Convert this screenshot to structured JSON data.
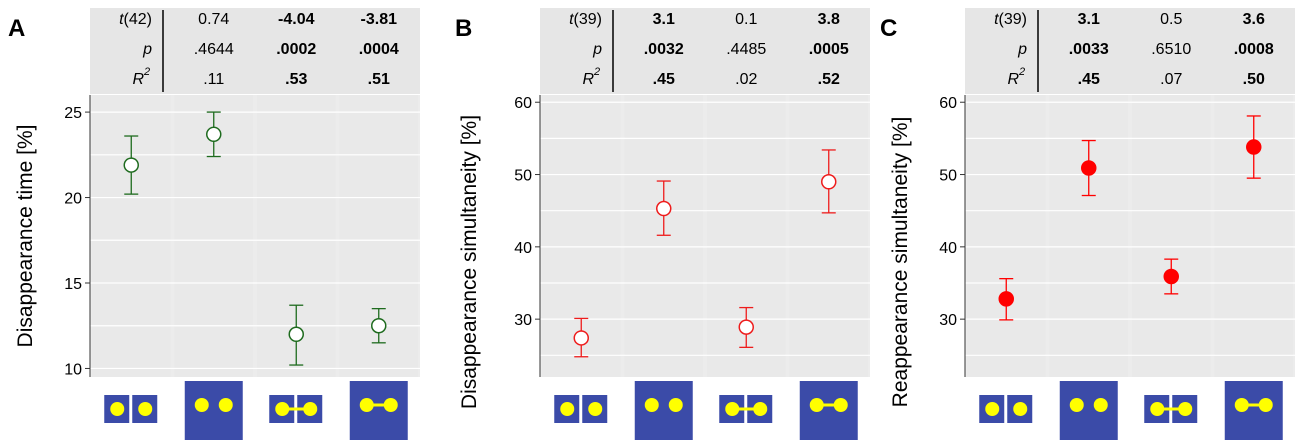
{
  "panels": [
    {
      "letter": "A",
      "stats_labels": {
        "t": "t(42)",
        "p": "p",
        "r2": "R"
      },
      "stats": [
        {
          "t": "0.74",
          "p": ".4644",
          "r2": ".11",
          "bold": false
        },
        {
          "t": "-4.04",
          "p": ".0002",
          "r2": ".53",
          "bold": true
        },
        {
          "t": "-3.81",
          "p": ".0004",
          "r2": ".51",
          "bold": true
        }
      ],
      "chart": {
        "type": "scatter",
        "ylabel": "Disappearance time [%]",
        "ylim": [
          9.5,
          26
        ],
        "yticks": [
          10,
          15,
          20,
          25
        ],
        "yminor": [
          12.5,
          17.5,
          22.5
        ],
        "grid": true,
        "marker": "open",
        "color": "#1e6b1e",
        "categories": [
          "separate-small",
          "separate-large",
          "connected-small",
          "connected-large"
        ],
        "points": [
          {
            "y": 21.9,
            "lo": 20.2,
            "hi": 23.6
          },
          {
            "y": 23.7,
            "lo": 22.4,
            "hi": 25.0
          },
          {
            "y": 12.0,
            "lo": 10.2,
            "hi": 13.7
          },
          {
            "y": 12.5,
            "lo": 11.5,
            "hi": 13.5
          }
        ]
      }
    },
    {
      "letter": "B",
      "stats_labels": {
        "t": "t(39)",
        "p": "p",
        "r2": "R"
      },
      "stats": [
        {
          "t": "3.1",
          "p": ".0032",
          "r2": ".45",
          "bold": true
        },
        {
          "t": "0.1",
          "p": ".4485",
          "r2": ".02",
          "bold": false
        },
        {
          "t": "3.8",
          "p": ".0005",
          "r2": ".52",
          "bold": true
        }
      ],
      "chart": {
        "type": "scatter",
        "ylabel": "Disappearance simultaneity [%]",
        "ylim": [
          22,
          61
        ],
        "yticks": [
          30,
          40,
          50,
          60
        ],
        "yminor": [
          25,
          35,
          45,
          55
        ],
        "grid": true,
        "marker": "open",
        "color": "#ee1c1c",
        "categories": [
          "separate-small",
          "separate-large",
          "connected-small",
          "connected-large"
        ],
        "points": [
          {
            "y": 27.4,
            "lo": 24.8,
            "hi": 30.1
          },
          {
            "y": 45.3,
            "lo": 41.6,
            "hi": 49.1
          },
          {
            "y": 28.9,
            "lo": 26.1,
            "hi": 31.6
          },
          {
            "y": 49.0,
            "lo": 44.7,
            "hi": 53.4
          }
        ]
      }
    },
    {
      "letter": "C",
      "stats_labels": {
        "t": "t(39)",
        "p": "p",
        "r2": "R"
      },
      "stats": [
        {
          "t": "3.1",
          "p": ".0033",
          "r2": ".45",
          "bold": true
        },
        {
          "t": "0.5",
          "p": ".6510",
          "r2": ".07",
          "bold": false
        },
        {
          "t": "3.6",
          "p": ".0008",
          "r2": ".50",
          "bold": true
        }
      ],
      "chart": {
        "type": "scatter",
        "ylabel": "Reappearance simultaneity [%]",
        "ylim": [
          22,
          61
        ],
        "yticks": [
          30,
          40,
          50,
          60
        ],
        "yminor": [
          25,
          35,
          45,
          55
        ],
        "grid": true,
        "marker": "filled",
        "color": "#ff0000",
        "categories": [
          "separate-small",
          "separate-large",
          "connected-small",
          "connected-large"
        ],
        "points": [
          {
            "y": 32.8,
            "lo": 29.9,
            "hi": 35.6
          },
          {
            "y": 50.9,
            "lo": 47.1,
            "hi": 54.7
          },
          {
            "y": 35.9,
            "lo": 33.5,
            "hi": 38.3
          },
          {
            "y": 53.8,
            "lo": 49.5,
            "hi": 58.1
          }
        ]
      }
    }
  ],
  "chart_data": [
    {
      "type": "scatter",
      "title": "A",
      "ylabel": "Disappearance time [%]",
      "ylim": [
        9.5,
        26
      ],
      "categories": [
        "separate-small",
        "separate-large",
        "connected-small",
        "connected-large"
      ],
      "values": [
        21.9,
        23.7,
        12.0,
        12.5
      ],
      "error_low": [
        20.2,
        22.4,
        10.2,
        11.5
      ],
      "error_high": [
        23.6,
        25.0,
        13.7,
        13.5
      ]
    },
    {
      "type": "scatter",
      "title": "B",
      "ylabel": "Disappearance simultaneity [%]",
      "ylim": [
        22,
        61
      ],
      "categories": [
        "separate-small",
        "separate-large",
        "connected-small",
        "connected-large"
      ],
      "values": [
        27.4,
        45.3,
        28.9,
        49.0
      ],
      "error_low": [
        24.8,
        41.6,
        26.1,
        44.7
      ],
      "error_high": [
        30.1,
        49.1,
        31.6,
        53.4
      ]
    },
    {
      "type": "scatter",
      "title": "C",
      "ylabel": "Reappearance simultaneity [%]",
      "ylim": [
        22,
        61
      ],
      "categories": [
        "separate-small",
        "separate-large",
        "connected-small",
        "connected-large"
      ],
      "values": [
        32.8,
        50.9,
        35.9,
        53.8
      ],
      "error_low": [
        29.9,
        47.1,
        33.5,
        49.5
      ],
      "error_high": [
        35.6,
        54.7,
        38.3,
        58.1
      ]
    }
  ],
  "colors": {
    "stimulus_blue": "#3b4ba8",
    "stimulus_dot": "#ffff00",
    "panel_bg": "#ececec",
    "gridline": "#ffffff"
  }
}
